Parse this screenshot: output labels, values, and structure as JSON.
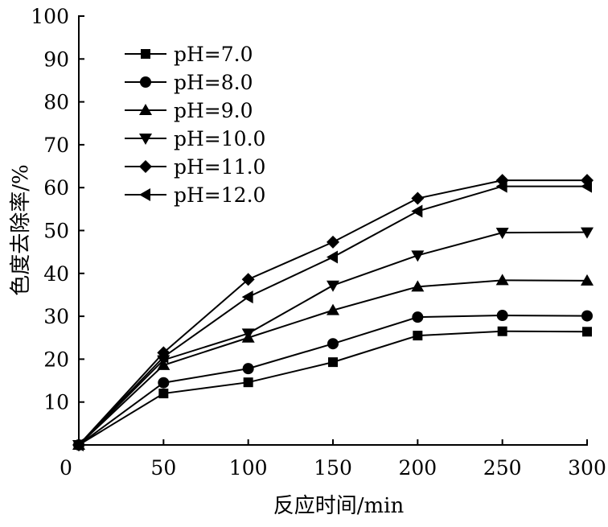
{
  "chart_data": {
    "type": "line",
    "title": "",
    "xlabel": "反应时间/min",
    "ylabel": "色度去除率/%",
    "x": [
      0,
      50,
      100,
      150,
      200,
      250,
      300
    ],
    "xticks": [
      "0",
      "50",
      "100",
      "150",
      "200",
      "250",
      "300"
    ],
    "yticks": [
      "10",
      "20",
      "30",
      "40",
      "50",
      "60",
      "70",
      "80",
      "90",
      "100"
    ],
    "xlim": [
      0,
      300
    ],
    "ylim": [
      0,
      100
    ],
    "grid": false,
    "legend_position": "top-left",
    "series": [
      {
        "name": "pH=7.0",
        "marker": "square",
        "values": [
          0,
          12.0,
          14.6,
          19.3,
          25.5,
          26.5,
          26.4
        ]
      },
      {
        "name": "pH=8.0",
        "marker": "circle",
        "values": [
          0,
          14.5,
          17.8,
          23.6,
          29.8,
          30.2,
          30.1
        ]
      },
      {
        "name": "pH=9.0",
        "marker": "triangle-up",
        "values": [
          0,
          18.6,
          25.0,
          31.4,
          36.9,
          38.4,
          38.3
        ]
      },
      {
        "name": "pH=10.0",
        "marker": "triangle-down",
        "values": [
          0,
          19.8,
          26.0,
          37.2,
          44.2,
          49.5,
          49.6
        ]
      },
      {
        "name": "pH=11.0",
        "marker": "diamond",
        "values": [
          0,
          21.5,
          38.6,
          47.3,
          57.5,
          61.7,
          61.7
        ]
      },
      {
        "name": "pH=12.0",
        "marker": "triangle-left",
        "values": [
          0,
          20.5,
          34.5,
          43.8,
          54.5,
          60.3,
          60.3
        ]
      }
    ],
    "colors": {
      "line": "#000000",
      "background": "#ffffff"
    }
  }
}
